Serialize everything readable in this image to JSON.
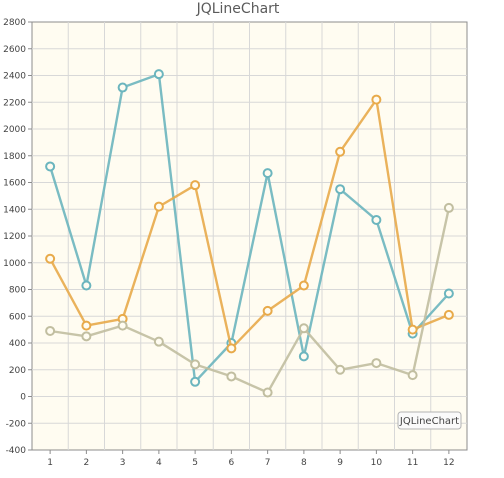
{
  "chart_data": {
    "type": "line",
    "title": "JQLineChart",
    "xlabel": "",
    "ylabel": "",
    "categories": [
      "1",
      "2",
      "3",
      "4",
      "5",
      "6",
      "7",
      "8",
      "9",
      "10",
      "11",
      "12"
    ],
    "ylim": [
      -400,
      2800
    ],
    "yticks": [
      -400,
      -200,
      0,
      200,
      400,
      600,
      800,
      1000,
      1200,
      1400,
      1600,
      1800,
      2000,
      2200,
      2400,
      2600,
      2800
    ],
    "grid": true,
    "legend": {
      "position": "bottom-right",
      "label": "JQLineChart"
    },
    "series": [
      {
        "color": "#6bb5be",
        "values": [
          1720,
          830,
          2310,
          2410,
          110,
          400,
          1670,
          300,
          1550,
          1320,
          470,
          770
        ]
      },
      {
        "color": "#e8aa4a",
        "values": [
          1030,
          530,
          580,
          1420,
          1580,
          360,
          640,
          830,
          1830,
          2220,
          500,
          610
        ]
      },
      {
        "color": "#c1bea0",
        "values": [
          490,
          450,
          530,
          410,
          240,
          150,
          30,
          510,
          200,
          250,
          160,
          1410
        ]
      }
    ],
    "colors": {
      "plot_background": "#fffcf1",
      "grid": "#d8d8d8",
      "axis": "#8c8c8c"
    }
  }
}
